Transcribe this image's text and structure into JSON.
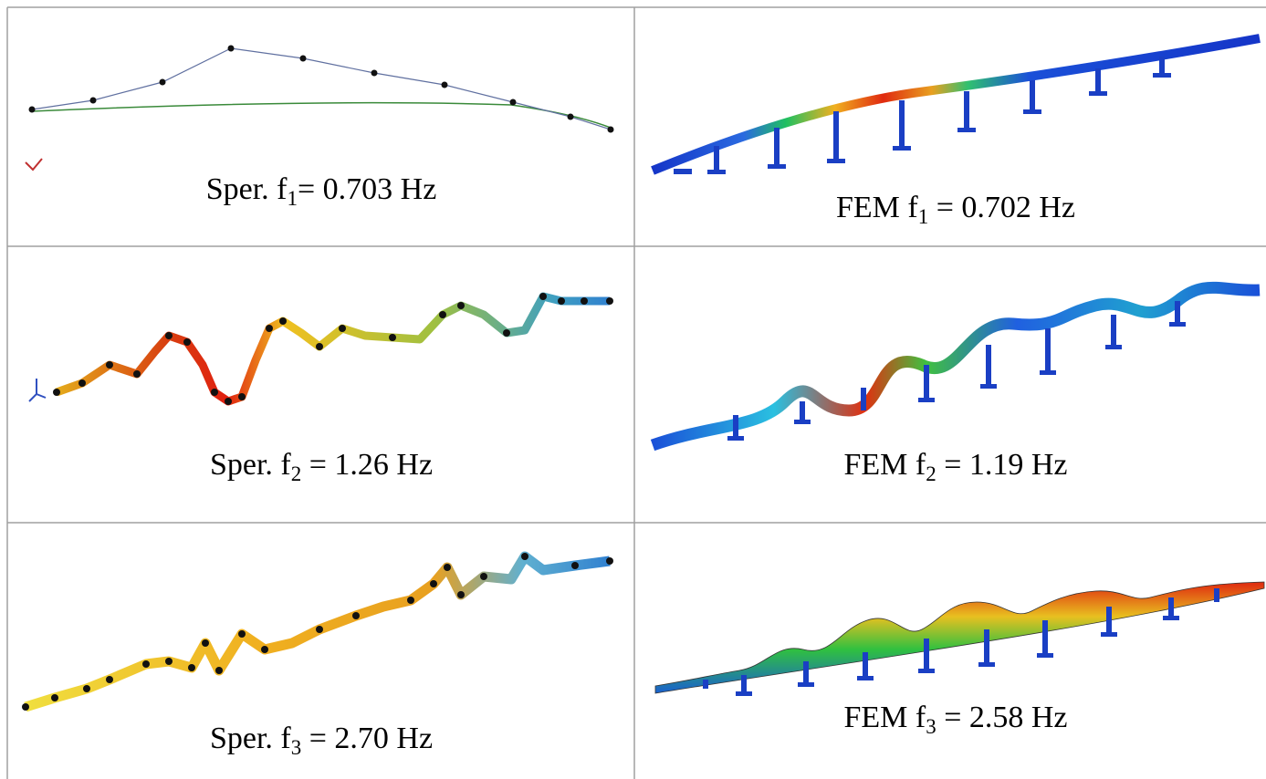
{
  "table": {
    "rows": [
      [
        {
          "prefix": "Sper. f",
          "sub": "1",
          "suffix": "= 0.703 Hz"
        },
        {
          "prefix": "FEM f",
          "sub": "1",
          "suffix": " = 0.702 Hz"
        }
      ],
      [
        {
          "prefix": "Sper. f",
          "sub": "2",
          "suffix": " = 1.26 Hz"
        },
        {
          "prefix": "FEM f",
          "sub": "2",
          "suffix": " = 1.19 Hz"
        }
      ],
      [
        {
          "prefix": "Sper. f",
          "sub": "3",
          "suffix": " = 2.70 Hz"
        },
        {
          "prefix": "FEM f",
          "sub": "3",
          "suffix": " = 2.58 Hz"
        }
      ]
    ]
  }
}
